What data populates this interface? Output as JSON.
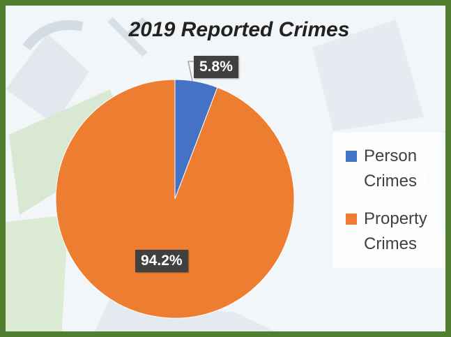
{
  "chart_data": {
    "type": "pie",
    "title": "2019 Reported Crimes",
    "categories": [
      "Person Crimes",
      "Property Crimes"
    ],
    "values": [
      5.8,
      94.2
    ],
    "data_labels": [
      "5.8%",
      "94.2%"
    ],
    "colors": [
      "#4472c4",
      "#ed7d31"
    ],
    "legend_position": "right"
  },
  "legend": {
    "items": [
      {
        "line1": "Person",
        "line2": "Crimes"
      },
      {
        "line1": "Property",
        "line2": "Crimes"
      }
    ]
  }
}
